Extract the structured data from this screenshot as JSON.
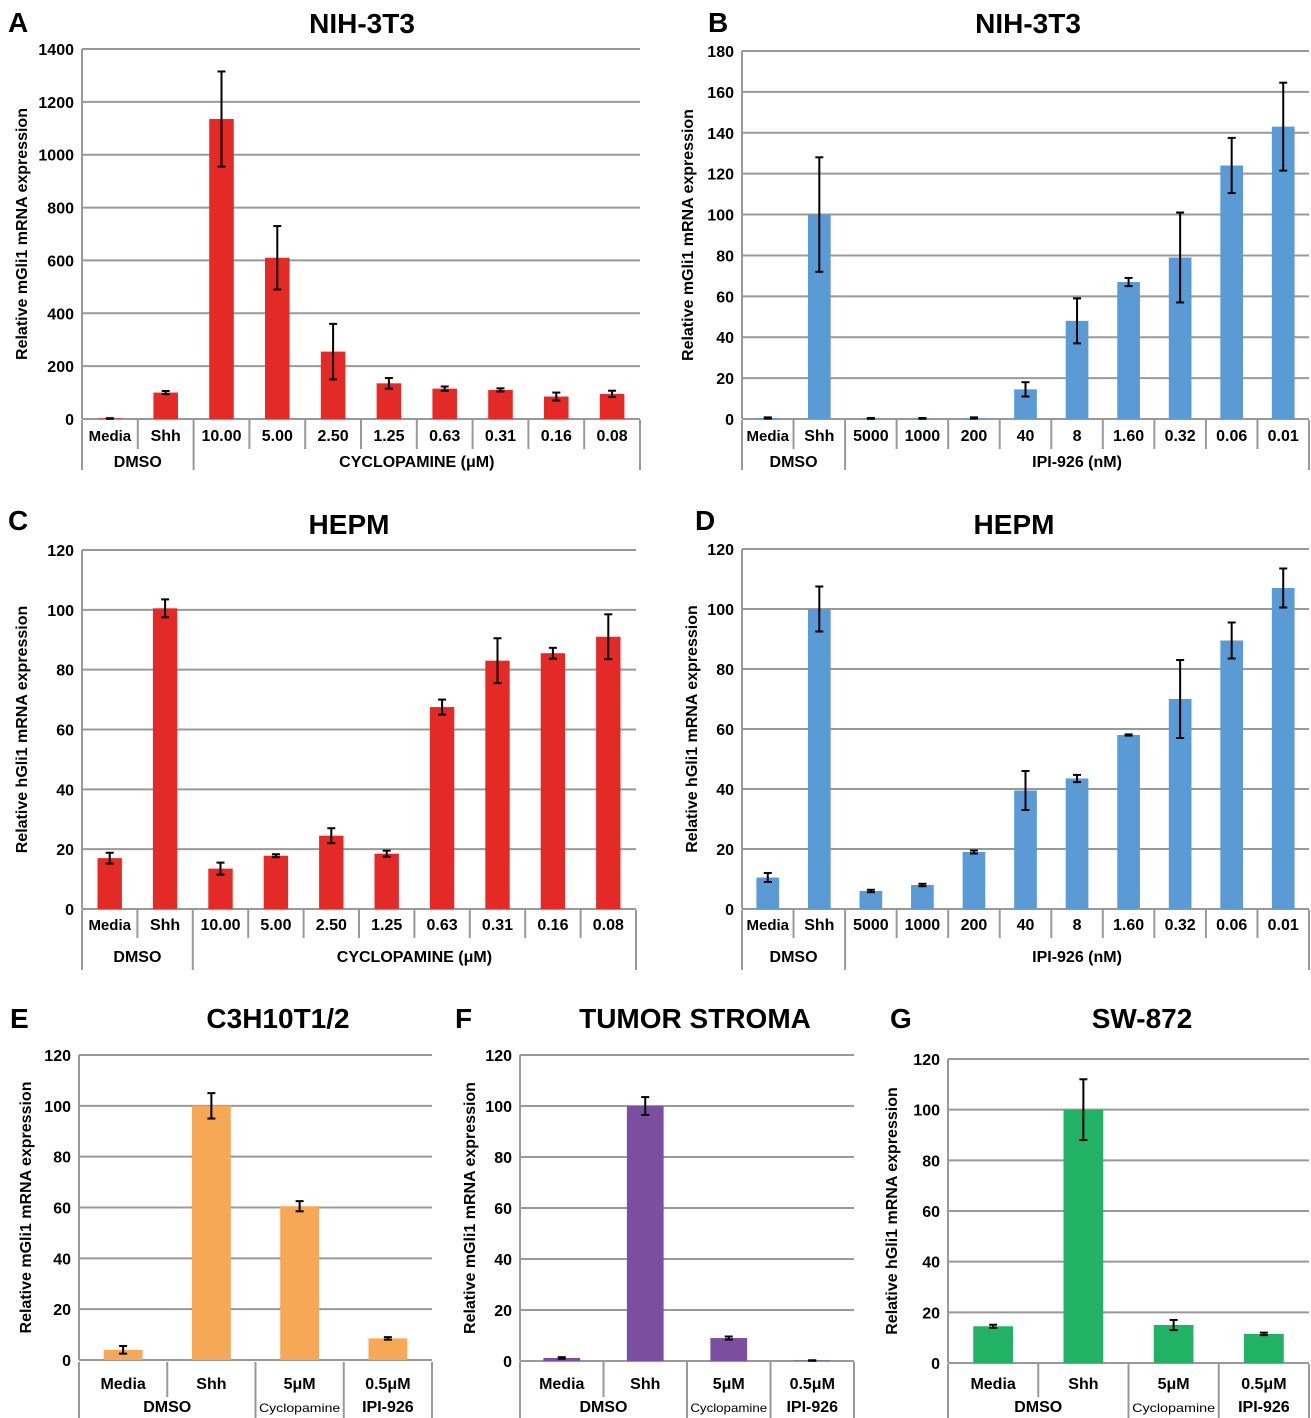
{
  "chart_data": [
    {
      "panel": "A",
      "type": "bar",
      "title": "NIH-3T3",
      "ylabel": "Relative mGli1 mRNA expression",
      "ylim": [
        0,
        1400
      ],
      "yticks": [
        "0",
        "200",
        "400",
        "600",
        "800",
        "1000",
        "1200",
        "1400"
      ],
      "grid": true,
      "categories": [
        "Media",
        "Shh",
        "10.00",
        "5.00",
        "2.50",
        "1.25",
        "0.63",
        "0.31",
        "0.16",
        "0.08"
      ],
      "values": [
        2,
        100,
        1135,
        610,
        255,
        135,
        115,
        110,
        85,
        95
      ],
      "errors": [
        1,
        6,
        180,
        120,
        105,
        20,
        8,
        6,
        15,
        12
      ],
      "groups": [
        {
          "label": "DMSO",
          "span": 2
        },
        {
          "label": "CYCLOPAMINE (μM)",
          "span": 8
        }
      ],
      "color": "#e32a26"
    },
    {
      "panel": "B",
      "type": "bar",
      "title": "NIH-3T3",
      "ylabel": "Relative mGli1 mRNA expression",
      "ylim": [
        0,
        180
      ],
      "yticks": [
        "0",
        "20",
        "40",
        "60",
        "80",
        "100",
        "120",
        "140",
        "160",
        "180"
      ],
      "grid": true,
      "categories": [
        "Media",
        "Shh",
        "5000",
        "1000",
        "200",
        "40",
        "8",
        "1.60",
        "0.32",
        "0.06",
        "0.01"
      ],
      "values": [
        0.5,
        100,
        0.3,
        0.3,
        0.5,
        14.5,
        48,
        67,
        79,
        124,
        143
      ],
      "errors": [
        0.3,
        28,
        0.2,
        0.2,
        0.3,
        3.5,
        11,
        2,
        22,
        13.5,
        21.5
      ],
      "groups": [
        {
          "label": "DMSO",
          "span": 2
        },
        {
          "label": "IPI-926 (nM)",
          "span": 9
        }
      ],
      "color": "#5b9bd5"
    },
    {
      "panel": "C",
      "type": "bar",
      "title": "HEPM",
      "ylabel": "Relative hGli1 mRNA expression",
      "ylim": [
        0,
        120
      ],
      "yticks": [
        "0",
        "20",
        "40",
        "60",
        "80",
        "100",
        "120"
      ],
      "grid": true,
      "categories": [
        "Media",
        "Shh",
        "10.00",
        "5.00",
        "2.50",
        "1.25",
        "0.63",
        "0.31",
        "0.16",
        "0.08"
      ],
      "values": [
        17,
        100.5,
        13.5,
        17.8,
        24.5,
        18.5,
        67.5,
        83,
        85.5,
        91
      ],
      "errors": [
        1.8,
        3,
        2,
        0.5,
        2.5,
        1,
        2.5,
        7.5,
        1.8,
        7.5
      ],
      "groups": [
        {
          "label": "DMSO",
          "span": 2
        },
        {
          "label": "CYCLOPAMINE (μM)",
          "span": 8
        }
      ],
      "color": "#e32a26"
    },
    {
      "panel": "D",
      "type": "bar",
      "title": "HEPM",
      "ylabel": "Relative hGli1 mRNA expression",
      "ylim": [
        0,
        120
      ],
      "yticks": [
        "0",
        "20",
        "40",
        "60",
        "80",
        "100",
        "120"
      ],
      "grid": true,
      "categories": [
        "Media",
        "Shh",
        "5000",
        "1000",
        "200",
        "40",
        "8",
        "1.60",
        "0.32",
        "0.06",
        "0.01"
      ],
      "values": [
        10.5,
        100,
        6,
        8,
        19,
        39.5,
        43.5,
        58,
        70,
        89.5,
        107
      ],
      "errors": [
        1.5,
        7.5,
        0.4,
        0.4,
        0.5,
        6.5,
        1.2,
        0.2,
        13,
        6,
        6.5
      ],
      "groups": [
        {
          "label": "DMSO",
          "span": 2
        },
        {
          "label": "IPI-926 (nM)",
          "span": 9
        }
      ],
      "color": "#5b9bd5"
    },
    {
      "panel": "E",
      "type": "bar",
      "title": "C3H10T1/2",
      "ylabel": "Relative mGli1 mRNA expression",
      "ylim": [
        0,
        120
      ],
      "yticks": [
        "0",
        "20",
        "40",
        "60",
        "80",
        "100",
        "120"
      ],
      "grid": true,
      "categories": [
        "Media",
        "Shh",
        "5μM",
        "0.5μM"
      ],
      "subcategories": [
        "",
        "",
        "Cyclopamine",
        "IPI-926"
      ],
      "values": [
        4,
        100,
        60.5,
        8.5
      ],
      "errors": [
        1.5,
        5,
        2,
        0.5
      ],
      "groups": [
        {
          "label": "DMSO",
          "span": 2
        }
      ],
      "color": "#f7a856"
    },
    {
      "panel": "F",
      "type": "bar",
      "title": "TUMOR STROMA",
      "ylabel": "Relative mGli1 mRNA expression",
      "ylim": [
        0,
        120
      ],
      "yticks": [
        "0",
        "20",
        "40",
        "60",
        "80",
        "100",
        "120"
      ],
      "grid": true,
      "categories": [
        "Media",
        "Shh",
        "5μM",
        "0.5μM"
      ],
      "subcategories": [
        "",
        "",
        "Cyclopamine",
        "IPI-926"
      ],
      "values": [
        1.2,
        100,
        9,
        0.2
      ],
      "errors": [
        0.3,
        3.5,
        0.6,
        0.1
      ],
      "groups": [
        {
          "label": "DMSO",
          "span": 2
        }
      ],
      "color": "#7b4ea0"
    },
    {
      "panel": "G",
      "type": "bar",
      "title": "SW-872",
      "ylabel": "Relative hGli1 mRNA expression",
      "ylim": [
        0,
        120
      ],
      "yticks": [
        "0",
        "20",
        "40",
        "60",
        "80",
        "100",
        "120"
      ],
      "grid": true,
      "categories": [
        "Media",
        "Shh",
        "5μM",
        "0.5μM"
      ],
      "subcategories": [
        "",
        "",
        "Cyclopamine",
        "IPI-926"
      ],
      "values": [
        14.5,
        100,
        15,
        11.5
      ],
      "errors": [
        0.6,
        12,
        2,
        0.5
      ],
      "groups": [
        {
          "label": "DMSO",
          "span": 2
        }
      ],
      "color": "#22b266"
    }
  ]
}
